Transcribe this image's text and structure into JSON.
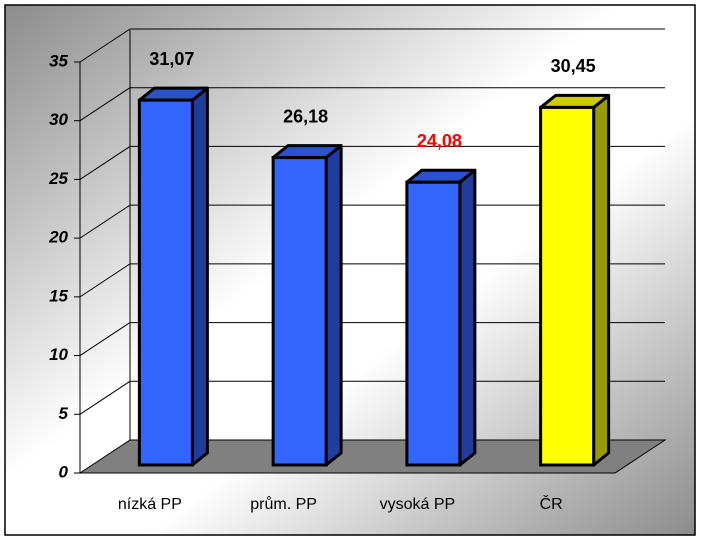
{
  "chart_data": {
    "type": "bar",
    "categories": [
      "nízká PP",
      "prům. PP",
      "vysoká PP",
      "ČR"
    ],
    "values": [
      31.07,
      26.18,
      24.08,
      30.45
    ],
    "value_labels": [
      "31,07",
      "26,18",
      "24,08",
      "30,45"
    ],
    "colors": [
      "#3366ff",
      "#3366ff",
      "#3366ff",
      "#ffff00"
    ],
    "value_label_colors": [
      "#000000",
      "#000000",
      "#ff0000",
      "#000000"
    ],
    "ylim": [
      0,
      35
    ],
    "yticks": [
      0,
      5,
      10,
      15,
      20,
      25,
      30,
      35
    ],
    "grid": true
  }
}
